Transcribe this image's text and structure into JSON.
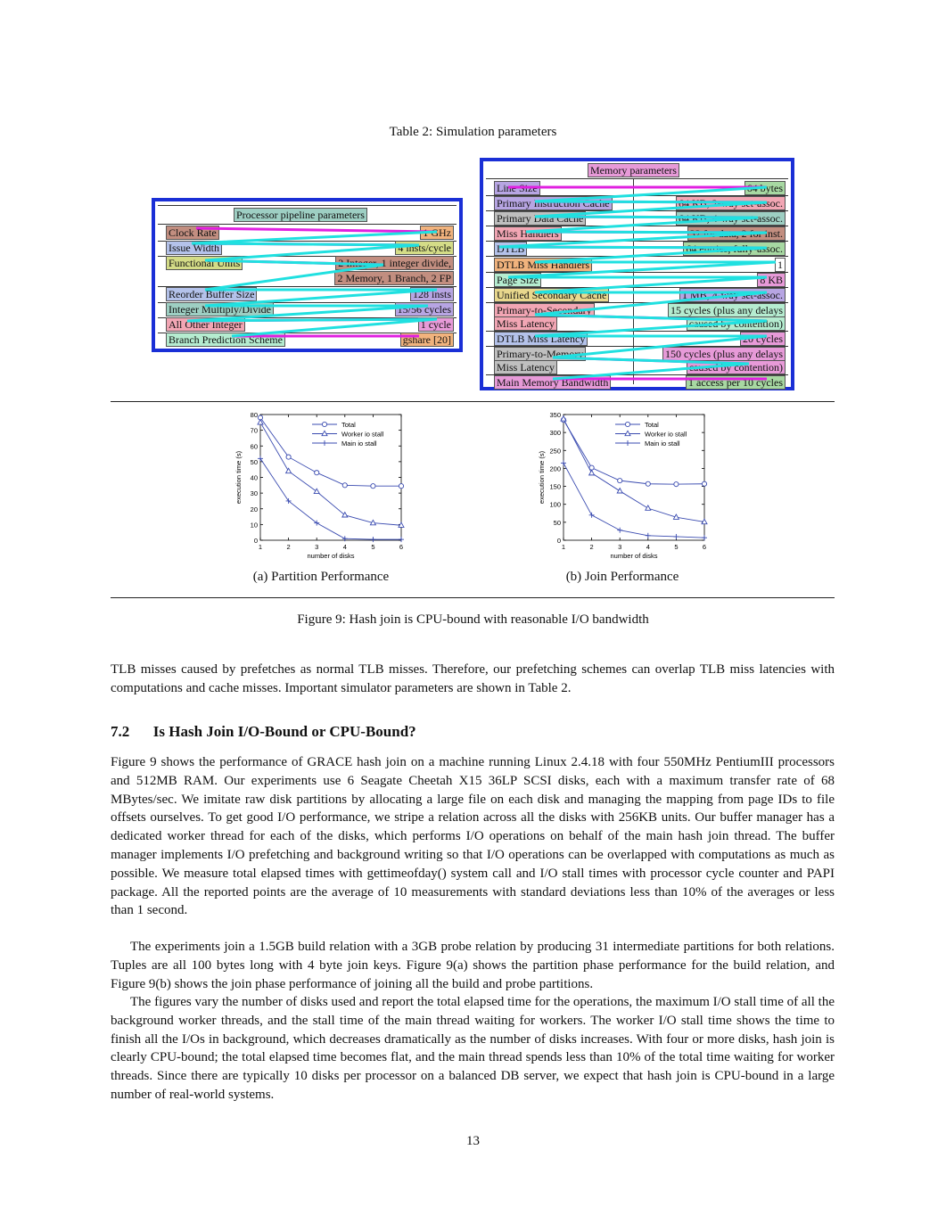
{
  "table_caption": "Table 2: Simulation parameters",
  "processor_table": {
    "header": "Processor pipeline parameters",
    "rows": [
      {
        "label": "Clock Rate",
        "value": "1 GHz"
      },
      {
        "label": "Issue Width",
        "value": "4 insts/cycle"
      },
      {
        "label": "Functional Units",
        "value": "2 Integer, 1 integer divide,",
        "value2": "2 Memory, 1 Branch, 2 FP"
      },
      {
        "label": "Reorder Buffer Size",
        "value": "128 insts"
      },
      {
        "label": "Integer Multiply/Divide",
        "value": "15/56 cycles"
      },
      {
        "label": "All Other Integer",
        "value": "1 cycle"
      },
      {
        "label": "Branch Prediction Scheme",
        "value": "gshare [20]"
      }
    ]
  },
  "memory_table": {
    "header": "Memory parameters",
    "rows": [
      {
        "label": "Line Size",
        "value": "64 bytes"
      },
      {
        "label": "Primary Instruction Cache",
        "value": "64 KB, 2-way set-assoc."
      },
      {
        "label": "Primary Data Cache",
        "value": "64 KB, 4-way set-assoc."
      },
      {
        "label": "Miss Handlers",
        "value": "32 for data, 2 for inst."
      },
      {
        "label": "DTLB",
        "value": "64 entries, fully-assoc."
      },
      {
        "label": "DTLB Miss Handlers",
        "value": "1"
      },
      {
        "label": "Page Size",
        "value": "8 KB"
      },
      {
        "label": "Unified Secondary Cache",
        "value": "1 MB, 4-way set-assoc."
      },
      {
        "label": "Primary-to-Secondary",
        "label2": "Miss Latency",
        "value": "15 cycles (plus any delays",
        "value2": "caused by contention)"
      },
      {
        "label": "DTLB Miss Latency",
        "value": "20 cycles"
      },
      {
        "label": "Primary-to-Memory",
        "label2": "Miss Latency",
        "value": "150 cycles (plus any delays",
        "value2": "caused by contention)"
      },
      {
        "label": "Main Memory Bandwidth",
        "value": "1 access per 10 cycles"
      }
    ]
  },
  "chart_data": [
    {
      "type": "line",
      "subcaption": "(a) Partition Performance",
      "xlabel": "number of disks",
      "ylabel": "execution time (s)",
      "xlim": [
        1,
        6
      ],
      "ylim": [
        0,
        80
      ],
      "yticks": [
        "0",
        "10",
        "20",
        "30",
        "40",
        "50",
        "60",
        "70",
        "80"
      ],
      "xticks": [
        "1",
        "2",
        "3",
        "4",
        "5",
        "6"
      ],
      "x": [
        1,
        2,
        3,
        4,
        5,
        6
      ],
      "legend_position": "top-right",
      "series": [
        {
          "name": "Total",
          "marker": "circle",
          "values": [
            78,
            53,
            43,
            35,
            34.5,
            34.5
          ]
        },
        {
          "name": "Worker io stall",
          "marker": "triangle",
          "values": [
            75,
            44,
            31,
            16,
            11,
            9.5
          ]
        },
        {
          "name": "Main io stall",
          "marker": "plus",
          "values": [
            52,
            25,
            11,
            1,
            0.5,
            0.5
          ]
        }
      ]
    },
    {
      "type": "line",
      "subcaption": "(b) Join Performance",
      "xlabel": "number of disks",
      "ylabel": "execution time (s)",
      "xlim": [
        1,
        6
      ],
      "ylim": [
        0,
        350
      ],
      "yticks": [
        "0",
        "50",
        "100",
        "150",
        "200",
        "250",
        "300",
        "350"
      ],
      "xticks": [
        "1",
        "2",
        "3",
        "4",
        "5",
        "6"
      ],
      "x": [
        1,
        2,
        3,
        4,
        5,
        6
      ],
      "legend_position": "top-right",
      "series": [
        {
          "name": "Total",
          "marker": "circle",
          "values": [
            335,
            202,
            166,
            157,
            156,
            157
          ]
        },
        {
          "name": "Worker io stall",
          "marker": "triangle",
          "values": [
            338,
            187,
            137,
            89,
            64,
            51
          ]
        },
        {
          "name": "Main io stall",
          "marker": "plus",
          "values": [
            215,
            70,
            28,
            13,
            10,
            7
          ]
        }
      ]
    }
  ],
  "figure_caption": "Figure 9: Hash join is CPU-bound with reasonable I/O bandwidth",
  "intro_para": "TLB misses caused by prefetches as normal TLB misses. Therefore, our prefetching schemes can overlap TLB miss latencies with computations and cache misses. Important simulator parameters are shown in Table 2.",
  "section": {
    "number": "7.2",
    "title": "Is Hash Join I/O-Bound or CPU-Bound?"
  },
  "para1": "Figure 9 shows the performance of GRACE hash join on a machine running Linux 2.4.18 with four 550MHz PentiumIII processors and 512MB RAM. Our experiments use 6 Seagate Cheetah X15 36LP SCSI disks, each with a maximum transfer rate of 68 MBytes/sec. We imitate raw disk partitions by allocating a large file on each disk and managing the mapping from page IDs to file offsets ourselves. To get good I/O performance, we stripe a relation across all the disks with 256KB units. Our buffer manager has a dedicated worker thread for each of the disks, which performs I/O operations on behalf of the main hash join thread. The buffer manager implements I/O prefetching and background writing so that I/O operations can be overlapped with computations as much as possible. We measure total elapsed times with gettimeofday() system call and I/O stall times with processor cycle counter and PAPI package. All the reported points are the average of 10 measurements with standard deviations less than 10% of the averages or less than 1 second.",
  "para2": "The experiments join a 1.5GB build relation with a 3GB probe relation by producing 31 intermediate partitions for both relations. Tuples are all 100 bytes long with 4 byte join keys. Figure 9(a) shows the partition phase performance for the build relation, and Figure 9(b) shows the join phase performance of joining all the build and probe partitions.",
  "para3": "The figures vary the number of disks used and report the total elapsed time for the operations, the maximum I/O stall time of all the background worker threads, and the stall time of the main thread waiting for workers. The worker I/O stall time shows the time to finish all the I/Os in background, which decreases dramatically as the number of disks increases. With four or more disks, hash join is clearly CPU-bound; the total elapsed time becomes flat, and the main thread spends less than 10% of the total time waiting for worker threads. Since there are typically 10 disks per processor on a balanced DB server, we expect that hash join is CPU-bound in a large number of real-world systems.",
  "page_number": "13",
  "colors": {
    "table_border": "#1a2fd6",
    "overlay_magenta": "#e020e0",
    "overlay_cyan": "#20e0e0",
    "plot_line": "#3a4bb0"
  }
}
